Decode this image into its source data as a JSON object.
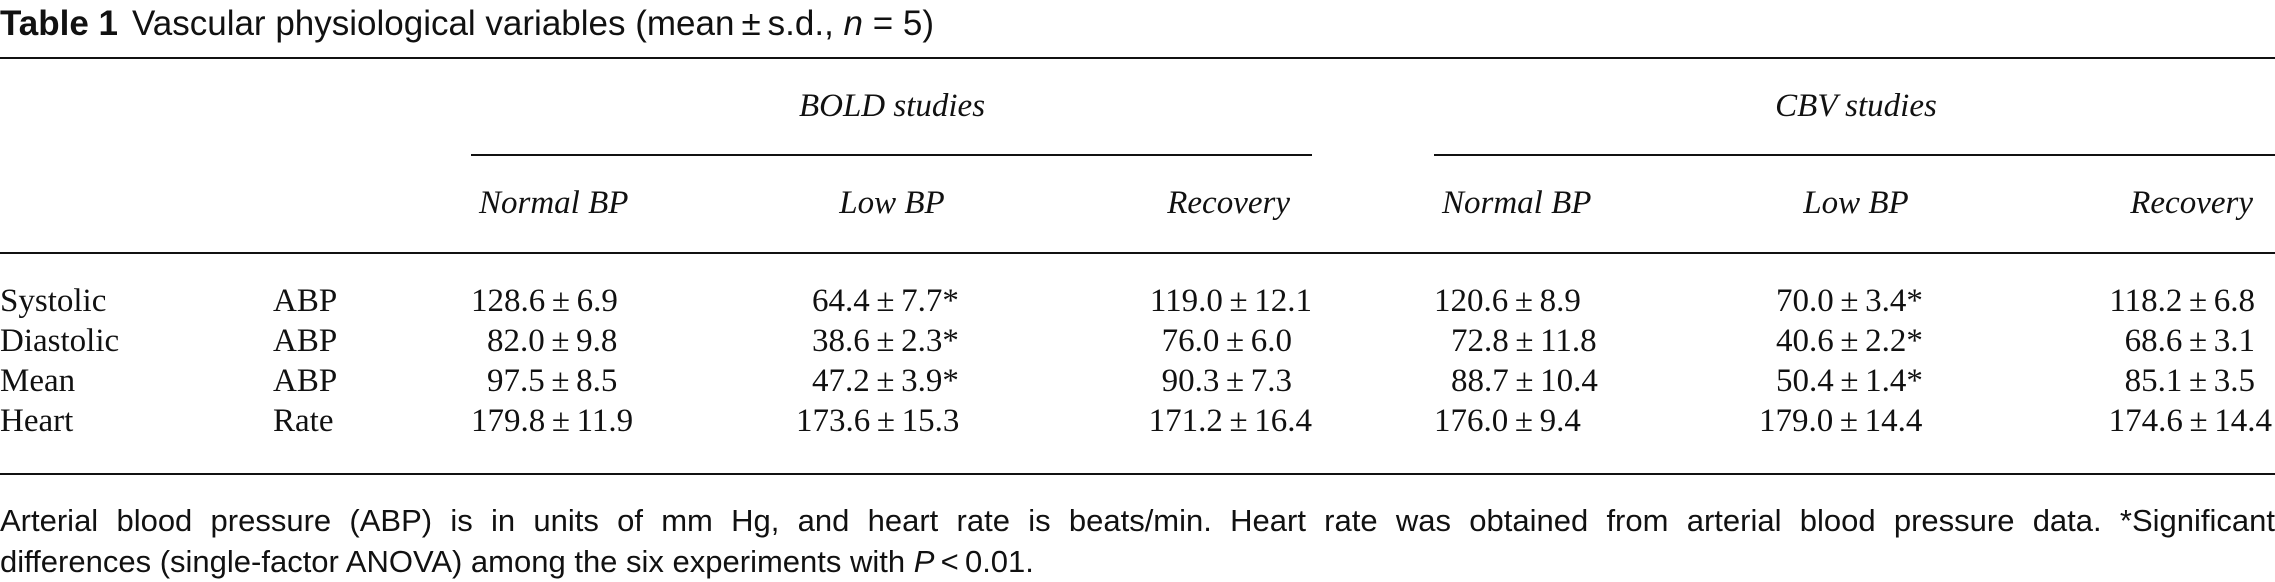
{
  "caption": {
    "label": "Table 1",
    "text_before": "Vascular physiological variables (mean ± s.d., ",
    "n_symbol": "n",
    "text_after": " = 5)"
  },
  "groups": [
    {
      "label": "BOLD studies"
    },
    {
      "label": "CBV studies"
    }
  ],
  "columns": [
    "Normal BP",
    "Low BP",
    "Recovery",
    "Normal BP",
    "Low BP",
    "Recovery"
  ],
  "rows": [
    {
      "name": "Systolic",
      "unit": "ABP",
      "values": [
        "128.6 ± 6.9",
        "64.4 ± 7.7*",
        "119.0 ± 12.1",
        "120.6 ± 8.9",
        "70.0 ± 3.4*",
        "118.2 ± 6.8"
      ]
    },
    {
      "name": "Diastolic",
      "unit": "ABP",
      "values": [
        "82.0 ± 9.8",
        "38.6 ± 2.3*",
        "76.0 ± 6.0",
        "72.8 ± 11.8",
        "40.6 ± 2.2*",
        "68.6 ± 3.1"
      ]
    },
    {
      "name": "Mean",
      "unit": "ABP",
      "values": [
        "97.5 ± 8.5",
        "47.2 ± 3.9*",
        "90.3 ± 7.3",
        "88.7 ± 10.4",
        "50.4 ± 1.4*",
        "85.1 ± 3.5"
      ]
    },
    {
      "name": "Heart",
      "unit": "Rate",
      "values": [
        "179.8 ± 11.9",
        "173.6 ± 15.3",
        "171.2 ± 16.4",
        "176.0 ± 9.4",
        "179.0 ± 14.4",
        "174.6 ± 14.4"
      ]
    }
  ],
  "footnote": {
    "line1": "Arterial blood pressure (ABP) is in units of mm Hg, and heart rate is beats/min. Heart rate was obtained from arterial blood pressure data. *Significant",
    "line2_before": "differences (single-factor ANOVA) among the six experiments with ",
    "p_symbol": "P",
    "line2_after": " < 0.01."
  }
}
